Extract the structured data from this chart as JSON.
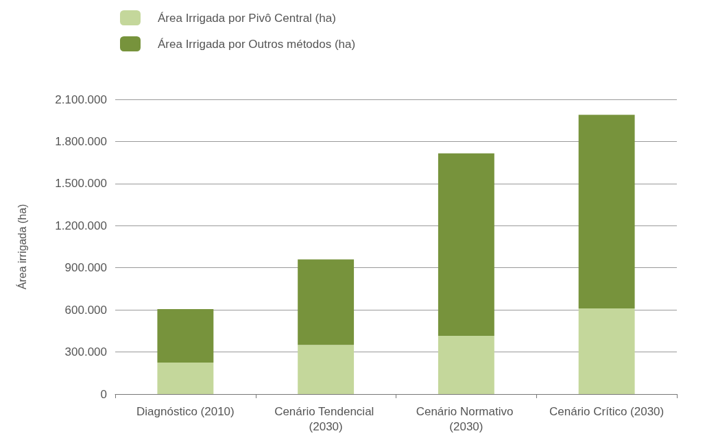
{
  "chart_data": {
    "type": "bar",
    "stacked": true,
    "ylabel": "Área irrigada (ha)",
    "categories": [
      "Diagnóstico (2010)",
      "Cenário Tendencial (2030)",
      "Cenário Normativo (2030)",
      "Cenário Crítico (2030)"
    ],
    "series": [
      {
        "name": "Área Irrigada por Pivô Central (ha)",
        "color": "#c4d79b",
        "values": [
          225000,
          350000,
          415000,
          610000
        ]
      },
      {
        "name": "Área Irrigada por Outros métodos (ha)",
        "color": "#77933c",
        "values": [
          380000,
          610000,
          1300000,
          1380000
        ]
      }
    ],
    "ylim": [
      0,
      2100000
    ],
    "yticks": [
      {
        "value": 0,
        "label": "0"
      },
      {
        "value": 300000,
        "label": "300.000"
      },
      {
        "value": 600000,
        "label": "600.000"
      },
      {
        "value": 900000,
        "label": "900.000"
      },
      {
        "value": 1200000,
        "label": "1.200.000"
      },
      {
        "value": 1500000,
        "label": "1.500.000"
      },
      {
        "value": 1800000,
        "label": "1.800.000"
      },
      {
        "value": 2100000,
        "label": "2.100.000"
      }
    ],
    "grid": "y",
    "legend": "top left"
  }
}
